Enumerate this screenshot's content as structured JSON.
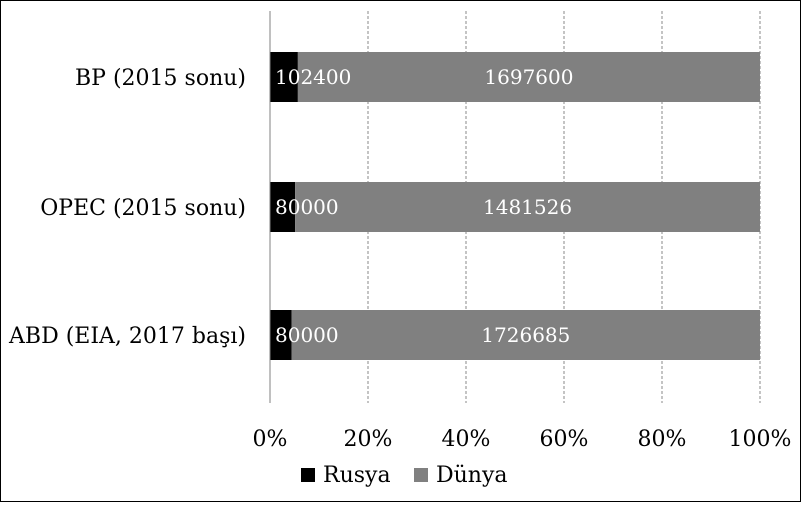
{
  "chart_data": {
    "type": "bar",
    "orientation": "horizontal",
    "stacked": "percent",
    "categories": [
      "BP (2015 sonu)",
      "OPEC (2015 sonu)",
      "ABD (EIA, 2017 başı)"
    ],
    "series": [
      {
        "name": "Rusya",
        "values": [
          102400,
          80000,
          80000
        ],
        "color": "#000000"
      },
      {
        "name": "Dünya",
        "values": [
          1697600,
          1481526,
          1726685
        ],
        "color": "#808080"
      }
    ],
    "xticks": [
      "0%",
      "20%",
      "40%",
      "60%",
      "80%",
      "100%"
    ],
    "xlim": [
      0,
      100
    ],
    "grid": "vertical-dashed",
    "legend_position": "bottom"
  }
}
